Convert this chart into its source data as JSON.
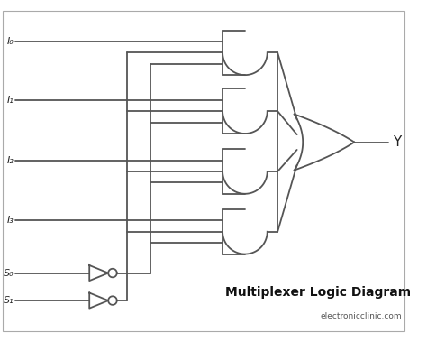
{
  "title": "Multiplexer Logic Diagram",
  "subtitle": "electronicclinic.com",
  "background_color": "#ffffff",
  "line_color": "#555555",
  "line_width": 1.3,
  "inputs": [
    "I₀",
    "I₁",
    "I₂",
    "I₃"
  ],
  "selects": [
    "S₀",
    "S₁"
  ],
  "output": "Y",
  "figsize": [
    4.74,
    3.79
  ],
  "dpi": 100
}
